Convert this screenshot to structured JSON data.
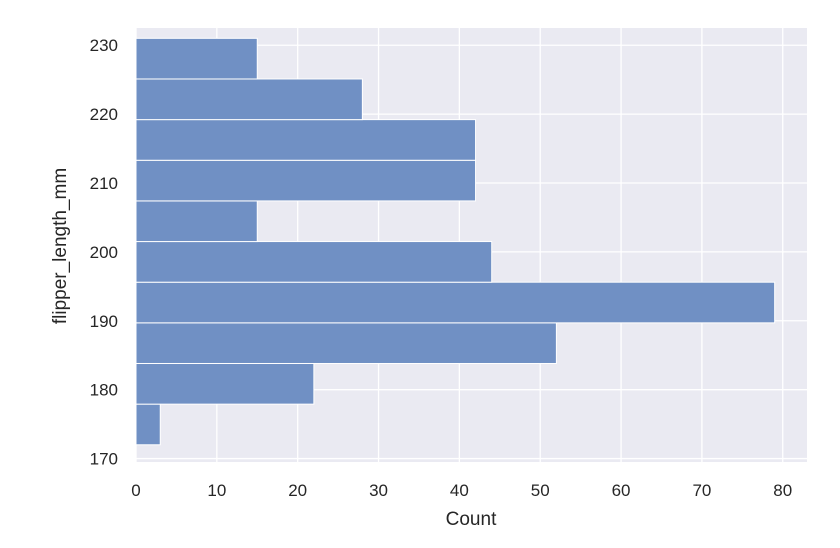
{
  "chart_data": {
    "type": "bar",
    "orientation": "horizontal",
    "xlabel": "Count",
    "ylabel": "flipper_length_mm",
    "xlim": [
      0,
      83
    ],
    "ylim": [
      169.5,
      232.5
    ],
    "xticks": [
      0,
      10,
      20,
      30,
      40,
      50,
      60,
      70,
      80
    ],
    "yticks": [
      170,
      180,
      190,
      200,
      210,
      220,
      230
    ],
    "grid": true,
    "legend": "none",
    "bins": [
      {
        "start": 172.0,
        "end": 177.9,
        "count": 3
      },
      {
        "start": 177.9,
        "end": 183.8,
        "count": 22
      },
      {
        "start": 183.8,
        "end": 189.7,
        "count": 52
      },
      {
        "start": 189.7,
        "end": 195.6,
        "count": 79
      },
      {
        "start": 195.6,
        "end": 201.5,
        "count": 44
      },
      {
        "start": 201.5,
        "end": 207.4,
        "count": 15
      },
      {
        "start": 207.4,
        "end": 213.3,
        "count": 42
      },
      {
        "start": 213.3,
        "end": 219.2,
        "count": 42
      },
      {
        "start": 219.2,
        "end": 225.1,
        "count": 28
      },
      {
        "start": 225.1,
        "end": 231.0,
        "count": 15
      }
    ],
    "colors": {
      "bar_fill": "#7090c4",
      "bar_edge": "#ffffff",
      "plot_bg": "#eaeaf2",
      "grid": "#ffffff",
      "text": "#262626"
    }
  }
}
